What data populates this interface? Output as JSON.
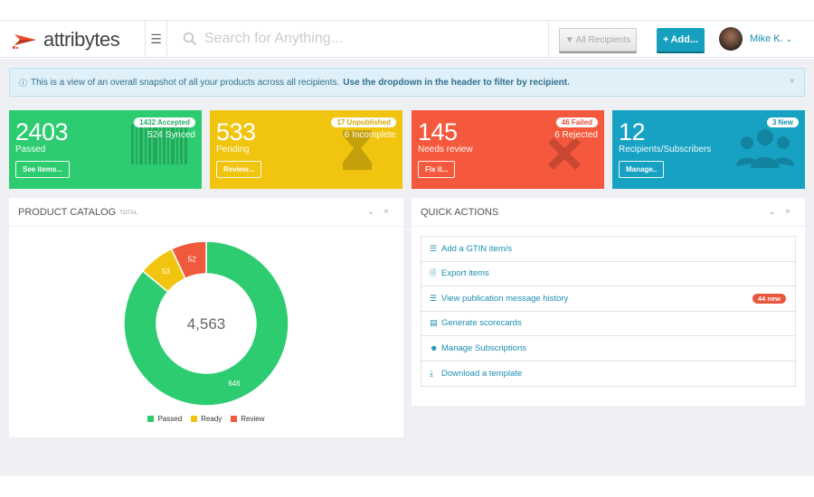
{
  "header": {
    "logo_text": "attribytes",
    "menu_icon": "hamburger-icon",
    "search_placeholder": "Search for Anything...",
    "recipients_label": "All Recipients",
    "add_label": "Add...",
    "user_name": "Mike K."
  },
  "alert": {
    "text": "This is a view of an overall snapshot of all your products across all recipients.",
    "bold_text": "Use the dropdown in the header to filter by recipient."
  },
  "tiles": [
    {
      "value": "2403",
      "label": "Passed",
      "badge": "1432 Accepted",
      "sub": "524 Synced",
      "button": "See items...",
      "color": "#2ecc71",
      "icon": "barcode-icon"
    },
    {
      "value": "533",
      "label": "Pending",
      "badge": "17 Unpublished",
      "sub": "6 Incomplete",
      "button": "Review...",
      "color": "#f1c40f",
      "icon": "hourglass-icon"
    },
    {
      "value": "145",
      "label": "Needs review",
      "badge": "46 Failed",
      "sub": "6 Rejected",
      "button": "Fix it...",
      "color": "#f5593d",
      "icon": "x-icon"
    },
    {
      "value": "12",
      "label": "Recipients/Subscribers",
      "badge": "3 New",
      "sub": "",
      "button": "Manage..",
      "color": "#17a2c4",
      "icon": "users-icon"
    }
  ],
  "catalog": {
    "title": "PRODUCT CATALOG",
    "subtitle": "TOTAL",
    "total": "4,563"
  },
  "chart_data": {
    "type": "pie",
    "center_label": "4,563",
    "categories": [
      "Passed",
      "Ready",
      "Review"
    ],
    "values": [
      646,
      53,
      52
    ],
    "colors": [
      "#2ecc71",
      "#f1c40f",
      "#f05a3c"
    ],
    "legend": "bottom"
  },
  "quick_actions": {
    "title": "QUICK ACTIONS",
    "items": [
      {
        "label": "Add a GTIN item/s",
        "icon": "list-icon",
        "badge": ""
      },
      {
        "label": "Export items",
        "icon": "file-icon",
        "badge": ""
      },
      {
        "label": "View publication message history",
        "icon": "list-icon",
        "badge": "44 new"
      },
      {
        "label": "Generate scorecards",
        "icon": "chart-icon",
        "badge": ""
      },
      {
        "label": "Manage Subscriptions",
        "icon": "users-icon",
        "badge": ""
      },
      {
        "label": "Download a template",
        "icon": "download-icon",
        "badge": ""
      }
    ]
  }
}
